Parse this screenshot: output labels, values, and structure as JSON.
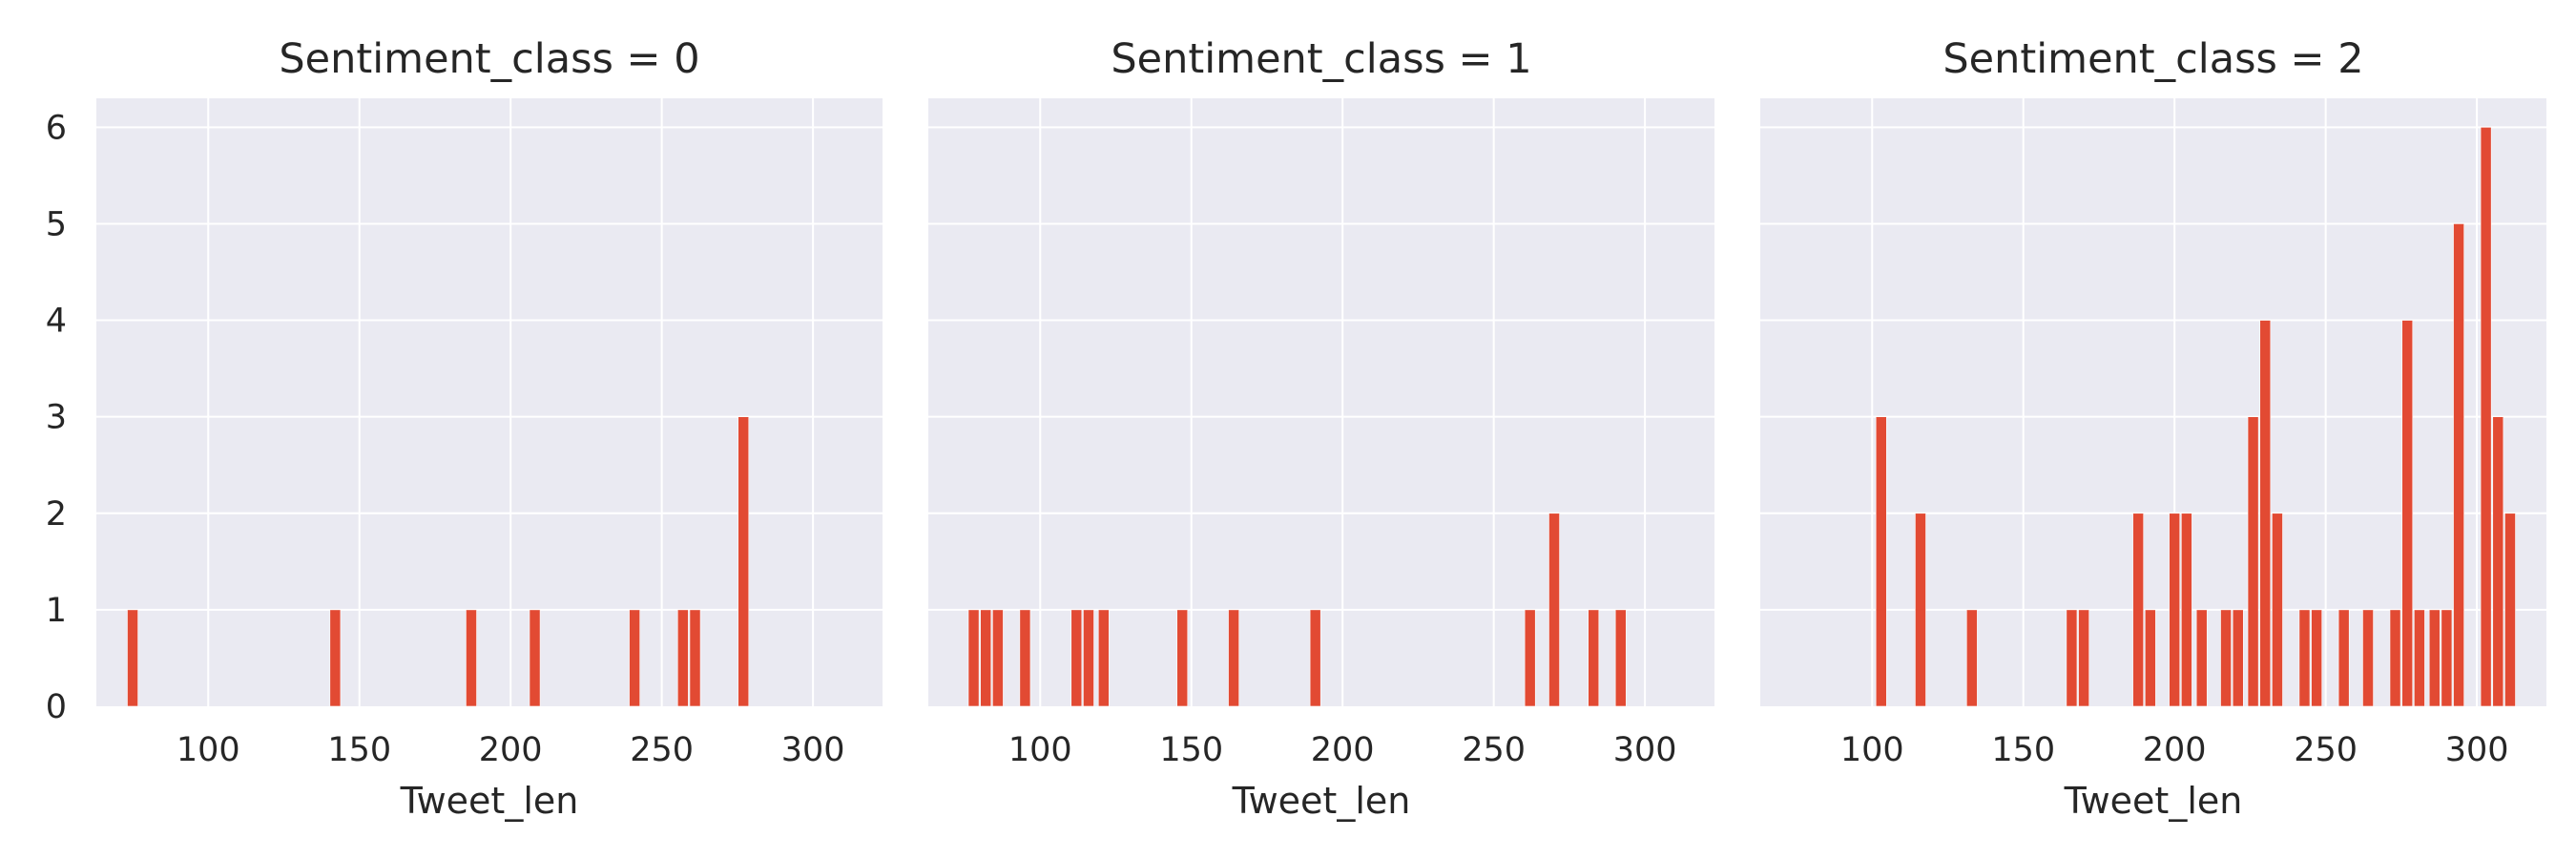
{
  "chart_data": [
    {
      "type": "bar",
      "title": "Sentiment_class = 0",
      "xlabel": "Tweet_len",
      "ylabel": "",
      "xlim": [
        63,
        323
      ],
      "ylim": [
        0,
        6.3
      ],
      "xticks": [
        100,
        150,
        200,
        250,
        300
      ],
      "yticks": [
        0,
        1,
        2,
        3,
        4,
        5,
        6
      ],
      "grid": true,
      "bar_width": 3.5,
      "color": "#e24a33",
      "x": [
        75,
        142,
        187,
        208,
        241,
        257,
        261,
        277
      ],
      "values": [
        1,
        1,
        1,
        1,
        1,
        1,
        1,
        3
      ]
    },
    {
      "type": "bar",
      "title": "Sentiment_class = 1",
      "xlabel": "Tweet_len",
      "ylabel": "",
      "xlim": [
        63,
        323
      ],
      "ylim": [
        0,
        6.3
      ],
      "xticks": [
        100,
        150,
        200,
        250,
        300
      ],
      "yticks": [
        0,
        1,
        2,
        3,
        4,
        5,
        6
      ],
      "grid": true,
      "bar_width": 3.5,
      "color": "#e24a33",
      "x": [
        78,
        82,
        86,
        95,
        112,
        116,
        121,
        147,
        164,
        191,
        262,
        270,
        283,
        292
      ],
      "values": [
        1,
        1,
        1,
        1,
        1,
        1,
        1,
        1,
        1,
        1,
        1,
        2,
        1,
        1
      ]
    },
    {
      "type": "bar",
      "title": "Sentiment_class = 2",
      "xlabel": "Tweet_len",
      "ylabel": "",
      "xlim": [
        63,
        323
      ],
      "ylim": [
        0,
        6.3
      ],
      "xticks": [
        100,
        150,
        200,
        250,
        300
      ],
      "yticks": [
        0,
        1,
        2,
        3,
        4,
        5,
        6
      ],
      "grid": true,
      "bar_width": 3.5,
      "color": "#e24a33",
      "x": [
        103,
        116,
        133,
        166,
        170,
        188,
        192,
        200,
        204,
        209,
        217,
        221,
        226,
        230,
        234,
        243,
        247,
        256,
        264,
        273,
        277,
        281,
        286,
        290,
        294,
        303,
        307,
        311
      ],
      "values": [
        3,
        2,
        1,
        1,
        1,
        2,
        1,
        2,
        2,
        1,
        1,
        1,
        3,
        4,
        2,
        1,
        1,
        1,
        1,
        1,
        4,
        1,
        1,
        1,
        5,
        6,
        3,
        2
      ]
    }
  ]
}
